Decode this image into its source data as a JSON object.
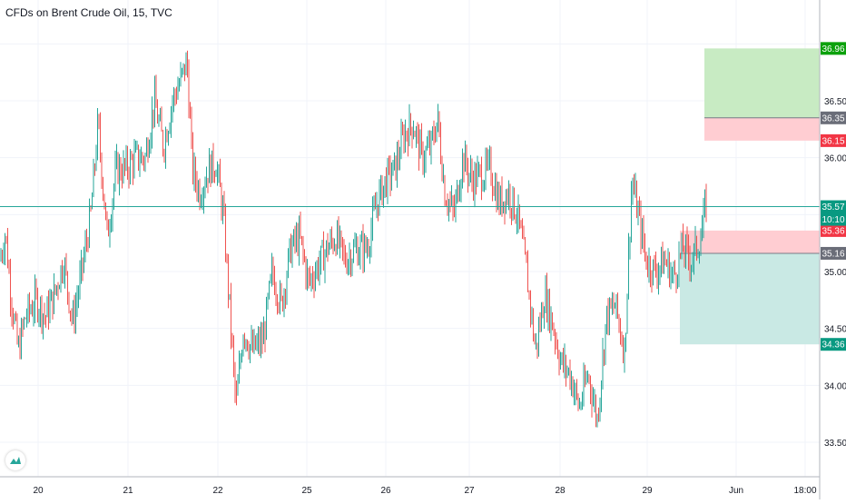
{
  "header": {
    "title": "CFDs on Brent Crude Oil, 15, TVC"
  },
  "chart_data": {
    "type": "candlestick",
    "title": "CFDs on Brent Crude Oil, 15, TVC",
    "ylim": [
      33.2,
      37.45
    ],
    "y_ticks": [
      "33.50",
      "34.00",
      "34.50",
      "35.00",
      "35.50",
      "36.00",
      "36.50"
    ],
    "x_ticks": [
      "20",
      "21",
      "22",
      "25",
      "26",
      "27",
      "28",
      "29",
      "Jun",
      "18:00"
    ],
    "grid": true,
    "price_path": [
      [
        0,
        35.1
      ],
      [
        6,
        35.35
      ],
      [
        12,
        34.8
      ],
      [
        20,
        34.3
      ],
      [
        28,
        34.6
      ],
      [
        40,
        34.75
      ],
      [
        50,
        34.6
      ],
      [
        60,
        34.8
      ],
      [
        70,
        35.1
      ],
      [
        80,
        34.55
      ],
      [
        90,
        35.0
      ],
      [
        100,
        35.5
      ],
      [
        108,
        36.3
      ],
      [
        118,
        35.3
      ],
      [
        128,
        35.9
      ],
      [
        138,
        35.9
      ],
      [
        150,
        36.0
      ],
      [
        160,
        36.0
      ],
      [
        170,
        36.5
      ],
      [
        180,
        36.1
      ],
      [
        190,
        36.5
      ],
      [
        200,
        36.7
      ],
      [
        206,
        36.85
      ],
      [
        212,
        35.9
      ],
      [
        220,
        35.7
      ],
      [
        230,
        35.9
      ],
      [
        238,
        35.95
      ],
      [
        246,
        35.5
      ],
      [
        252,
        34.8
      ],
      [
        260,
        33.8
      ],
      [
        268,
        34.5
      ],
      [
        278,
        34.3
      ],
      [
        290,
        34.4
      ],
      [
        300,
        35.0
      ],
      [
        310,
        34.7
      ],
      [
        320,
        35.2
      ],
      [
        330,
        35.3
      ],
      [
        340,
        34.9
      ],
      [
        350,
        35.05
      ],
      [
        360,
        35.2
      ],
      [
        370,
        35.3
      ],
      [
        380,
        35.1
      ],
      [
        392,
        35.2
      ],
      [
        404,
        35.2
      ],
      [
        415,
        35.6
      ],
      [
        425,
        35.8
      ],
      [
        435,
        35.9
      ],
      [
        445,
        36.2
      ],
      [
        455,
        36.3
      ],
      [
        465,
        36.0
      ],
      [
        475,
        36.1
      ],
      [
        482,
        36.35
      ],
      [
        490,
        35.7
      ],
      [
        500,
        35.5
      ],
      [
        510,
        36.0
      ],
      [
        520,
        35.8
      ],
      [
        530,
        35.85
      ],
      [
        540,
        35.9
      ],
      [
        550,
        35.6
      ],
      [
        560,
        35.7
      ],
      [
        570,
        35.5
      ],
      [
        580,
        35.0
      ],
      [
        590,
        34.3
      ],
      [
        600,
        34.8
      ],
      [
        610,
        34.5
      ],
      [
        618,
        34.2
      ],
      [
        628,
        34.1
      ],
      [
        638,
        33.8
      ],
      [
        648,
        34.1
      ],
      [
        658,
        33.7
      ],
      [
        668,
        34.6
      ],
      [
        678,
        34.7
      ],
      [
        688,
        34.3
      ],
      [
        696,
        35.8
      ],
      [
        703,
        35.5
      ],
      [
        712,
        35.1
      ],
      [
        722,
        35.0
      ],
      [
        732,
        35.1
      ],
      [
        742,
        34.95
      ],
      [
        752,
        35.2
      ],
      [
        762,
        35.1
      ],
      [
        772,
        35.3
      ],
      [
        778,
        35.6
      ]
    ],
    "position_long": {
      "entry_price": 36.35,
      "target_price": 36.96,
      "stop_price": 36.15,
      "labels": [
        "36.96",
        "36.35",
        "36.15"
      ]
    },
    "position_short": {
      "entry_price": 35.16,
      "target_price": 34.36,
      "stop_price": 35.36,
      "labels": [
        "35.36",
        "35.16",
        "34.36"
      ]
    },
    "current_price": {
      "value": 35.57,
      "label": "35.57",
      "countdown": "10:10"
    },
    "colors": {
      "up": "#26a69a",
      "down": "#ef5350",
      "target_fill_long": "#c8ebc3",
      "stop_fill": "#ffcdd2",
      "target_fill_short": "#c9e9e4",
      "label_green": "#089981",
      "label_darkgreen": "#0ca10c",
      "label_red": "#f23645",
      "label_gray": "#6a6d78",
      "grid": "#f0f3fa",
      "axis_text": "#131722",
      "price_line": "#26a69a"
    }
  }
}
